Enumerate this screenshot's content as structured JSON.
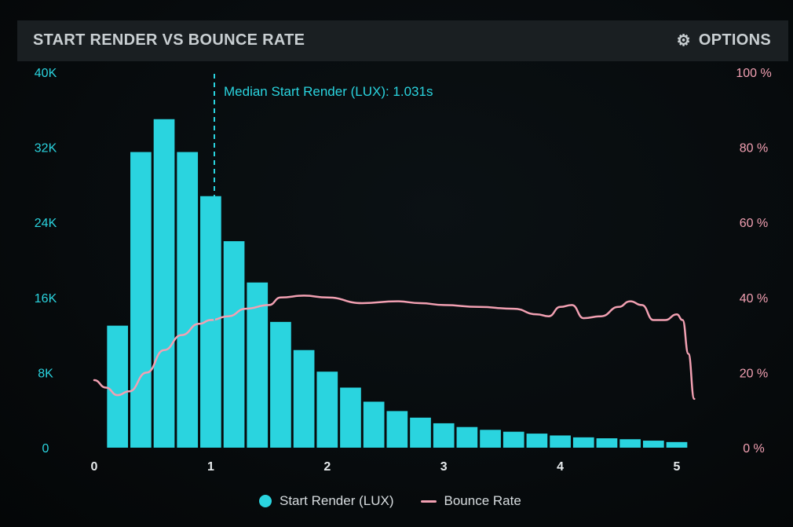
{
  "header": {
    "title": "START RENDER VS BOUNCE RATE",
    "options_label": "OPTIONS",
    "options_icon": "gear-icon"
  },
  "colors": {
    "bar": "#2ad4df",
    "line": "#f2a0b2",
    "left_axis_text": "#2ad4df",
    "right_axis_text": "#f2a0b2",
    "x_axis_text": "#e6eaec",
    "median_line": "#2ad4df"
  },
  "chart_data": {
    "type": "bar",
    "title": "START RENDER VS BOUNCE RATE",
    "xlim": [
      0,
      5
    ],
    "x_ticks": [
      "0",
      "1",
      "2",
      "3",
      "4",
      "5"
    ],
    "y_left": {
      "ylim": [
        0,
        40000
      ],
      "ticks": [
        "0",
        "8K",
        "16K",
        "24K",
        "32K",
        "40K"
      ]
    },
    "y_right": {
      "ylim": [
        0,
        100
      ],
      "ticks": [
        "0 %",
        "20 %",
        "40 %",
        "60 %",
        "80 %",
        "100 %"
      ]
    },
    "median": {
      "x": 1.031,
      "label": "Median Start Render (LUX): 1.031s"
    },
    "series": [
      {
        "name": "Start Render (LUX)",
        "type": "bar",
        "axis": "left",
        "bin_width": 0.2,
        "x": [
          0.2,
          0.4,
          0.6,
          0.8,
          1.0,
          1.2,
          1.4,
          1.6,
          1.8,
          2.0,
          2.2,
          2.4,
          2.6,
          2.8,
          3.0,
          3.2,
          3.4,
          3.6,
          3.8,
          4.0,
          4.2,
          4.4,
          4.6,
          4.8,
          5.0
        ],
        "values": [
          13000,
          31500,
          35000,
          31500,
          26800,
          22000,
          17600,
          13400,
          10400,
          8100,
          6400,
          4900,
          3900,
          3200,
          2600,
          2200,
          1900,
          1700,
          1500,
          1300,
          1100,
          1000,
          900,
          750,
          600
        ]
      },
      {
        "name": "Bounce Rate",
        "type": "line",
        "axis": "right",
        "x": [
          0,
          0.1,
          0.2,
          0.3,
          0.45,
          0.6,
          0.75,
          0.9,
          1.0,
          1.15,
          1.3,
          1.5,
          1.6,
          1.8,
          2.0,
          2.3,
          2.6,
          2.8,
          3.0,
          3.3,
          3.6,
          3.8,
          3.9,
          4.0,
          4.1,
          4.2,
          4.35,
          4.5,
          4.6,
          4.7,
          4.8,
          4.9,
          5.0,
          5.05,
          5.1,
          5.15
        ],
        "values": [
          18,
          16,
          14,
          15,
          20,
          26,
          30,
          33,
          34,
          35,
          37,
          38,
          40,
          40.5,
          40,
          38.5,
          39,
          38.5,
          38,
          37.5,
          37,
          35.5,
          35,
          37.5,
          38,
          34.5,
          35,
          37.5,
          39,
          38,
          34,
          34,
          35.5,
          34,
          25,
          13
        ]
      }
    ],
    "legend": [
      "Start Render (LUX)",
      "Bounce Rate"
    ],
    "legend_position": "bottom"
  }
}
